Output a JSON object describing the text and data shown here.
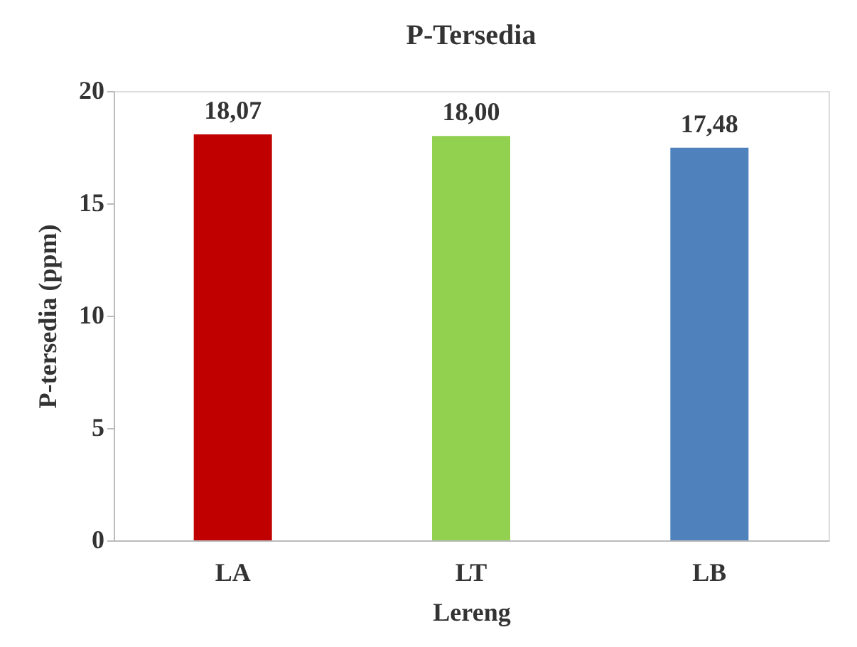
{
  "chart_data": {
    "type": "bar",
    "title": "P-Tersedia",
    "xlabel": "Lereng",
    "ylabel": "P-tersedia (ppm)",
    "categories": [
      "LA",
      "LT",
      "LB"
    ],
    "values": [
      18.07,
      18.0,
      17.48
    ],
    "value_labels": [
      "18,07",
      "18,00",
      "17,48"
    ],
    "colors": [
      "#c00000",
      "#92d050",
      "#4f81bd"
    ],
    "ylim": [
      0,
      20
    ],
    "yticks": [
      0,
      5,
      10,
      15,
      20
    ],
    "grid": false
  }
}
